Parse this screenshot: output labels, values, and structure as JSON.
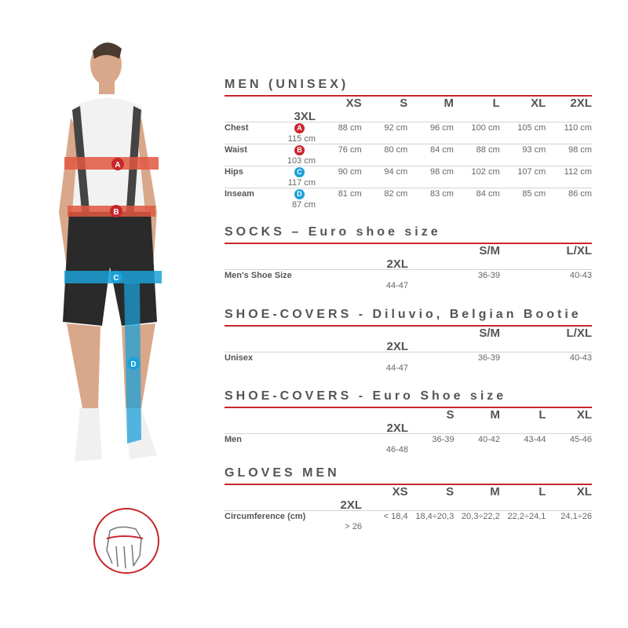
{
  "colors": {
    "accent": "#c8262c",
    "blue": "#1ba0d8",
    "text": "#555555"
  },
  "figure": {
    "labels": [
      "A",
      "B",
      "C",
      "D"
    ],
    "icon": "cyclist-model-measurement-figure"
  },
  "hand_icon": "hand-circumference-icon",
  "men": {
    "title": "MEN (UNISEX)",
    "sizes": [
      "XS",
      "S",
      "M",
      "L",
      "XL",
      "2XL",
      "3XL"
    ],
    "rows": [
      {
        "label": "Chest",
        "badge": "A",
        "badge_color": "#c8262c",
        "values": [
          "88 cm",
          "92 cm",
          "96 cm",
          "100 cm",
          "105 cm",
          "110 cm",
          "115 cm"
        ]
      },
      {
        "label": "Waist",
        "badge": "B",
        "badge_color": "#c8262c",
        "values": [
          "76 cm",
          "80 cm",
          "84 cm",
          "88 cm",
          "93 cm",
          "98 cm",
          "103 cm"
        ]
      },
      {
        "label": "Hips",
        "badge": "C",
        "badge_color": "#1ba0d8",
        "values": [
          "90 cm",
          "94 cm",
          "98 cm",
          "102 cm",
          "107 cm",
          "112 cm",
          "117 cm"
        ]
      },
      {
        "label": "Inseam",
        "badge": "D",
        "badge_color": "#1ba0d8",
        "values": [
          "81 cm",
          "82 cm",
          "83 cm",
          "84 cm",
          "85 cm",
          "86 cm",
          "87 cm"
        ]
      }
    ]
  },
  "socks": {
    "title": "SOCKS – Euro shoe size",
    "sizes": [
      "S/M",
      "L/XL",
      "2XL"
    ],
    "row": {
      "label": "Men's Shoe Size",
      "values": [
        "36-39",
        "40-43",
        "44-47"
      ]
    }
  },
  "shoecovers": {
    "title": "SHOE-COVERS - Diluvio, Belgian Bootie",
    "sizes": [
      "S/M",
      "L/XL",
      "2XL"
    ],
    "row": {
      "label": "Unisex",
      "values": [
        "36-39",
        "40-43",
        "44-47"
      ]
    }
  },
  "euro": {
    "title": "SHOE-COVERS - Euro Shoe size",
    "sizes": [
      "S",
      "M",
      "L",
      "XL",
      "2XL"
    ],
    "row": {
      "label": "Men",
      "values": [
        "36-39",
        "40-42",
        "43-44",
        "45-46",
        "46-48"
      ]
    }
  },
  "gloves": {
    "title": "GLOVES MEN",
    "sizes": [
      "XS",
      "S",
      "M",
      "L",
      "XL",
      "2XL"
    ],
    "row": {
      "label": "Circumference (cm)",
      "values": [
        "< 18,4",
        "18,4÷20,3",
        "20,3÷22,2",
        "22,2÷24,1",
        "24,1÷26",
        "> 26"
      ]
    }
  }
}
